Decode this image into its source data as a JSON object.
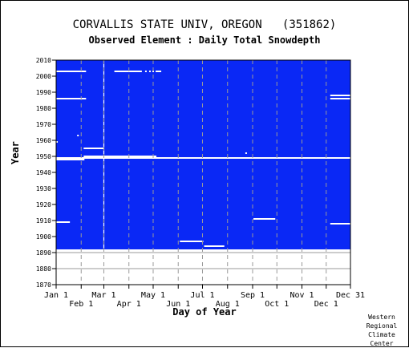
{
  "chart_data": {
    "type": "heatmap",
    "title": "CORVALLIS STATE UNIV, OREGON   (351862)",
    "subtitle": "Observed Element : Daily Total Snowdepth",
    "xlabel": "Day of Year",
    "ylabel": "Year",
    "xlim": [
      1,
      365
    ],
    "ylim": [
      1870,
      2010
    ],
    "x_ticks_upper": [
      "Jan 1",
      "Mar 1",
      "May 1",
      "Jul 1",
      "Sep 1",
      "Nov 1",
      "Dec 31"
    ],
    "x_ticks_lower": [
      "Feb 1",
      "Apr 1",
      "Jun 1",
      "Aug 1",
      "Oct 1",
      "Dec 1"
    ],
    "y_ticks": [
      2010,
      2000,
      1990,
      1980,
      1970,
      1960,
      1950,
      1940,
      1930,
      1920,
      1910,
      1900,
      1890,
      1880,
      1870
    ],
    "data_period": [
      1892,
      2010
    ],
    "data_color": "#0a28f5",
    "missing_color": "#ffffff",
    "missing_segments": [
      {
        "year": 2003,
        "start_day": 1,
        "end_day": 37
      },
      {
        "year": 2003,
        "start_day": 73,
        "end_day": 106
      },
      {
        "year": 2003,
        "start_day": 111,
        "end_day": 112
      },
      {
        "year": 2003,
        "start_day": 116,
        "end_day": 117
      },
      {
        "year": 2003,
        "start_day": 120,
        "end_day": 121
      },
      {
        "year": 2003,
        "start_day": 124,
        "end_day": 130
      },
      {
        "year": 1988,
        "start_day": 340,
        "end_day": 365
      },
      {
        "year": 1986,
        "start_day": 1,
        "end_day": 37
      },
      {
        "year": 1986,
        "start_day": 340,
        "end_day": 365
      },
      {
        "year": 1963,
        "start_day": 27,
        "end_day": 28
      },
      {
        "year": 1959,
        "start_day": 1,
        "end_day": 2
      },
      {
        "year": 1955,
        "start_day": 35,
        "end_day": 59
      },
      {
        "year": 1952,
        "start_day": 235,
        "end_day": 236
      },
      {
        "year": 1950,
        "start_day": 35,
        "end_day": 124
      },
      {
        "year": 1949,
        "start_day": 1,
        "end_day": 365
      },
      {
        "year": 1948,
        "start_day": 1,
        "end_day": 35
      },
      {
        "year": 1911,
        "start_day": 245,
        "end_day": 271
      },
      {
        "year": 1909,
        "start_day": 1,
        "end_day": 17
      },
      {
        "year": 1908,
        "start_day": 340,
        "end_day": 365
      },
      {
        "year": 1897,
        "start_day": 154,
        "end_day": 182
      },
      {
        "year": 1894,
        "start_day": 184,
        "end_day": 208
      }
    ],
    "missing_day_columns": [
      60
    ],
    "grid": true
  },
  "credit": [
    "Western",
    "Regional",
    "Climate",
    "Center"
  ]
}
